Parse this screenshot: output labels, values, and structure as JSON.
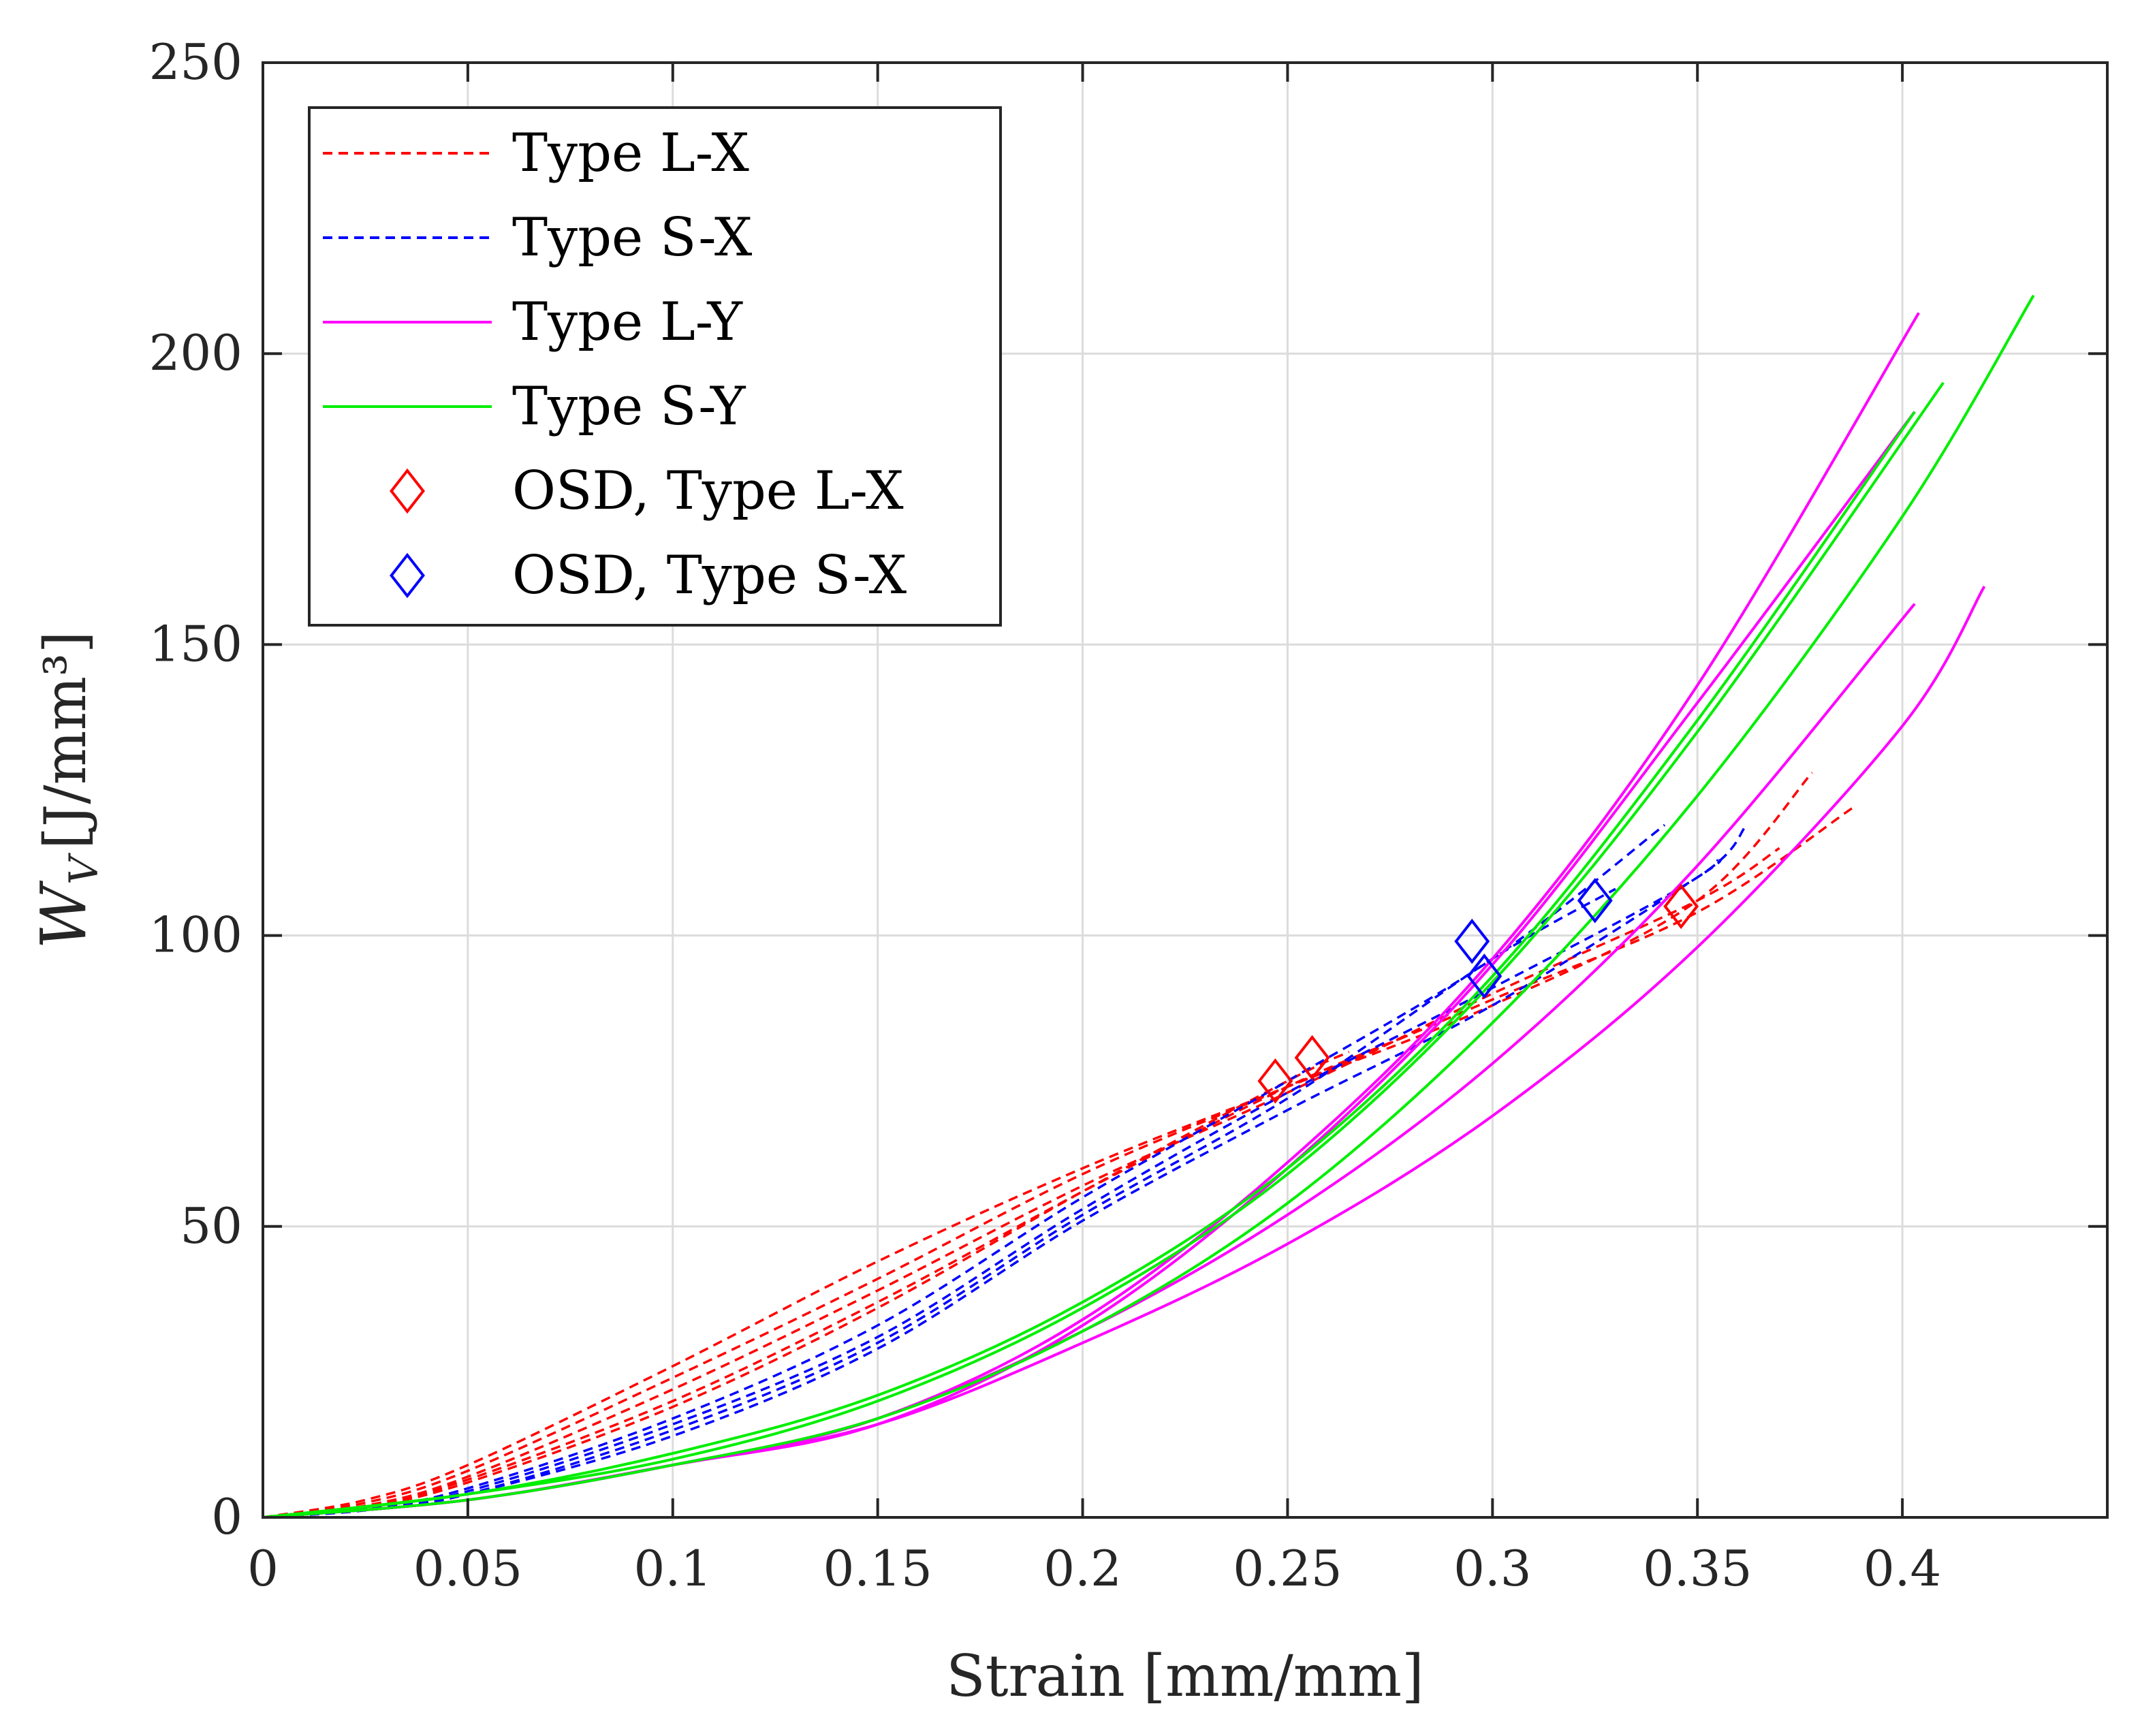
{
  "chart_data": {
    "type": "line",
    "title": "",
    "xlabel": "Strain [mm/mm]",
    "ylabel": "[J/mm³]",
    "ylabel_symbol": "W",
    "ylabel_subscript": "V",
    "xlim": [
      0,
      0.45
    ],
    "ylim": [
      0,
      250
    ],
    "xticks": [
      0,
      0.05,
      0.1,
      0.15,
      0.2,
      0.25,
      0.3,
      0.35,
      0.4
    ],
    "xtick_labels": [
      "0",
      "0.05",
      "0.1",
      "0.15",
      "0.2",
      "0.25",
      "0.3",
      "0.35",
      "0.4"
    ],
    "yticks": [
      0,
      50,
      100,
      150,
      200,
      250
    ],
    "ytick_labels": [
      "0",
      "50",
      "100",
      "150",
      "200",
      "250"
    ],
    "grid": true,
    "legend_position": "top-left",
    "legend": [
      "Type L-X",
      "Type S-X",
      "Type L-Y",
      "Type S-Y",
      "OSD, Type L-X",
      "OSD, Type S-X"
    ],
    "series": [
      {
        "name": "Type L-X",
        "group": "Type L-X",
        "color": "#ff0000",
        "dash": true,
        "x": [
          0,
          0.025,
          0.05,
          0.1,
          0.15,
          0.2,
          0.25,
          0.3,
          0.35,
          0.378
        ],
        "y": [
          0,
          3,
          9,
          26,
          44,
          60,
          74,
          88,
          106,
          128
        ]
      },
      {
        "name": "Type L-X",
        "group": "Type L-X",
        "color": "#ff0000",
        "dash": true,
        "x": [
          0,
          0.025,
          0.05,
          0.1,
          0.15,
          0.2,
          0.25,
          0.3,
          0.35,
          0.388
        ],
        "y": [
          0,
          2.5,
          8,
          24,
          41,
          59,
          74,
          89,
          104,
          122
        ]
      },
      {
        "name": "Type L-X",
        "group": "Type L-X",
        "color": "#ff0000",
        "dash": true,
        "x": [
          0,
          0.025,
          0.05,
          0.1,
          0.15,
          0.2,
          0.25,
          0.3,
          0.35,
          0.37
        ],
        "y": [
          0,
          2,
          7,
          22,
          39,
          57,
          73,
          90,
          106,
          115
        ]
      },
      {
        "name": "Type L-X",
        "group": "Type L-X",
        "color": "#ff0000",
        "dash": true,
        "x": [
          0,
          0.025,
          0.05,
          0.1,
          0.15,
          0.2,
          0.25,
          0.28
        ],
        "y": [
          0,
          2,
          6.5,
          20,
          37,
          56,
          74,
          83
        ]
      },
      {
        "name": "Type L-X",
        "group": "Type L-X",
        "color": "#ff0000",
        "dash": true,
        "x": [
          0,
          0.025,
          0.05,
          0.1,
          0.15,
          0.2,
          0.25,
          0.265
        ],
        "y": [
          0,
          1.8,
          6,
          19,
          36,
          56,
          75,
          80
        ]
      },
      {
        "name": "Type S-X",
        "group": "Type S-X",
        "color": "#0000ff",
        "dash": true,
        "x": [
          0,
          0.025,
          0.05,
          0.1,
          0.15,
          0.2,
          0.25,
          0.3,
          0.342
        ],
        "y": [
          0,
          1.5,
          5,
          17,
          33,
          55,
          75,
          96,
          119
        ]
      },
      {
        "name": "Type S-X",
        "group": "Type S-X",
        "color": "#0000ff",
        "dash": true,
        "x": [
          0,
          0.025,
          0.05,
          0.1,
          0.15,
          0.2,
          0.25,
          0.3,
          0.35,
          0.362
        ],
        "y": [
          0,
          1.4,
          4.5,
          16,
          31,
          53,
          73,
          91,
          110,
          119
        ]
      },
      {
        "name": "Type S-X",
        "group": "Type S-X",
        "color": "#0000ff",
        "dash": true,
        "x": [
          0,
          0.025,
          0.05,
          0.1,
          0.15,
          0.2,
          0.25,
          0.3,
          0.33
        ],
        "y": [
          0,
          1.3,
          4,
          15,
          30,
          52,
          72,
          96,
          108
        ]
      },
      {
        "name": "Type S-X",
        "group": "Type S-X",
        "color": "#0000ff",
        "dash": true,
        "x": [
          0,
          0.025,
          0.05,
          0.1,
          0.15,
          0.2,
          0.25,
          0.3,
          0.35,
          0.355
        ],
        "y": [
          0,
          1.2,
          4,
          14,
          29,
          51,
          70,
          88,
          110,
          113
        ]
      },
      {
        "name": "Type L-Y",
        "group": "Type L-Y",
        "color": "#ff00ff",
        "dash": false,
        "x": [
          0,
          0.05,
          0.1,
          0.15,
          0.2,
          0.25,
          0.3,
          0.35,
          0.404
        ],
        "y": [
          0,
          3,
          9,
          17,
          34,
          61,
          96,
          143,
          207
        ]
      },
      {
        "name": "Type L-Y",
        "group": "Type L-Y",
        "color": "#ff00ff",
        "dash": false,
        "x": [
          0,
          0.05,
          0.1,
          0.15,
          0.2,
          0.25,
          0.3,
          0.35,
          0.403
        ],
        "y": [
          0,
          3,
          9,
          16,
          33,
          60,
          95,
          140,
          190
        ]
      },
      {
        "name": "Type L-Y",
        "group": "Type L-Y",
        "color": "#ff00ff",
        "dash": false,
        "x": [
          0,
          0.05,
          0.1,
          0.15,
          0.2,
          0.25,
          0.3,
          0.35,
          0.403
        ],
        "y": [
          0,
          3,
          9,
          17,
          32,
          52,
          78,
          112,
          157
        ]
      },
      {
        "name": "Type L-Y",
        "group": "Type L-Y",
        "color": "#ff00ff",
        "dash": false,
        "x": [
          0,
          0.05,
          0.1,
          0.15,
          0.2,
          0.25,
          0.3,
          0.35,
          0.4,
          0.42
        ],
        "y": [
          0,
          3,
          9,
          16,
          30,
          47,
          69,
          98,
          136,
          160
        ]
      },
      {
        "name": "Type S-Y",
        "group": "Type S-Y",
        "color": "#00ee00",
        "dash": false,
        "x": [
          0,
          0.05,
          0.1,
          0.15,
          0.2,
          0.25,
          0.3,
          0.35,
          0.403
        ],
        "y": [
          0,
          4,
          11,
          21,
          37,
          60,
          93,
          137,
          190
        ]
      },
      {
        "name": "Type S-Y",
        "group": "Type S-Y",
        "color": "#00ee00",
        "dash": false,
        "x": [
          0,
          0.05,
          0.1,
          0.15,
          0.2,
          0.25,
          0.3,
          0.35,
          0.41
        ],
        "y": [
          0,
          4,
          10,
          20,
          36,
          59,
          92,
          135,
          195
        ]
      },
      {
        "name": "Type S-Y",
        "group": "Type S-Y",
        "color": "#00ee00",
        "dash": false,
        "x": [
          0,
          0.05,
          0.1,
          0.15,
          0.2,
          0.25,
          0.3,
          0.35,
          0.4,
          0.432
        ],
        "y": [
          0,
          3,
          9,
          17,
          32,
          54,
          85,
          124,
          172,
          210
        ]
      }
    ],
    "markers": [
      {
        "name": "OSD, Type L-X",
        "color": "#ff0000",
        "shape": "diamond",
        "points": [
          [
            0.247,
            75
          ],
          [
            0.256,
            79
          ],
          [
            0.346,
            105
          ]
        ]
      },
      {
        "name": "OSD, Type S-X",
        "color": "#0000ff",
        "shape": "diamond",
        "points": [
          [
            0.295,
            99
          ],
          [
            0.298,
            93
          ],
          [
            0.325,
            106
          ]
        ]
      }
    ]
  }
}
